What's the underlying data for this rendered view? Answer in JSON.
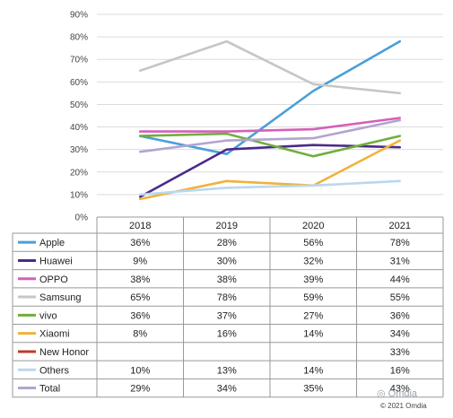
{
  "chart_data": {
    "type": "line",
    "categories": [
      "2018",
      "2019",
      "2020",
      "2021"
    ],
    "y_ticks": [
      "0%",
      "10%",
      "20%",
      "30%",
      "40%",
      "50%",
      "60%",
      "70%",
      "80%",
      "90%"
    ],
    "ylim": [
      0,
      90
    ],
    "grid": true,
    "legend": "data table below chart",
    "series": [
      {
        "name": "Apple",
        "color": "#4a9fd8",
        "values": [
          36,
          28,
          56,
          78
        ],
        "labels": [
          "36%",
          "28%",
          "56%",
          "78%"
        ]
      },
      {
        "name": "Huawei",
        "color": "#4b2a8a",
        "values": [
          9,
          30,
          32,
          31
        ],
        "labels": [
          "9%",
          "30%",
          "32%",
          "31%"
        ]
      },
      {
        "name": "OPPO",
        "color": "#d55fb8",
        "values": [
          38,
          38,
          39,
          44
        ],
        "labels": [
          "38%",
          "38%",
          "39%",
          "44%"
        ]
      },
      {
        "name": "Samsung",
        "color": "#c6c6c6",
        "values": [
          65,
          78,
          59,
          55
        ],
        "labels": [
          "65%",
          "78%",
          "59%",
          "55%"
        ]
      },
      {
        "name": "vivo",
        "color": "#6fae3e",
        "values": [
          36,
          37,
          27,
          36
        ],
        "labels": [
          "36%",
          "37%",
          "27%",
          "36%"
        ]
      },
      {
        "name": "Xiaomi",
        "color": "#f0b23c",
        "values": [
          8,
          16,
          14,
          34
        ],
        "labels": [
          "8%",
          "16%",
          "14%",
          "34%"
        ]
      },
      {
        "name": "New Honor",
        "color": "#c0392b",
        "values": [
          null,
          null,
          null,
          33
        ],
        "labels": [
          "",
          "",
          "",
          "33%"
        ]
      },
      {
        "name": "Others",
        "color": "#b9d8f0",
        "values": [
          10,
          13,
          14,
          16
        ],
        "labels": [
          "10%",
          "13%",
          "14%",
          "16%"
        ]
      },
      {
        "name": "Total",
        "color": "#b3a4cf",
        "values": [
          29,
          34,
          35,
          43
        ],
        "labels": [
          "29%",
          "34%",
          "35%",
          "43%"
        ]
      }
    ]
  },
  "watermark": "Omdia",
  "copyright": "© 2021 Omdia"
}
